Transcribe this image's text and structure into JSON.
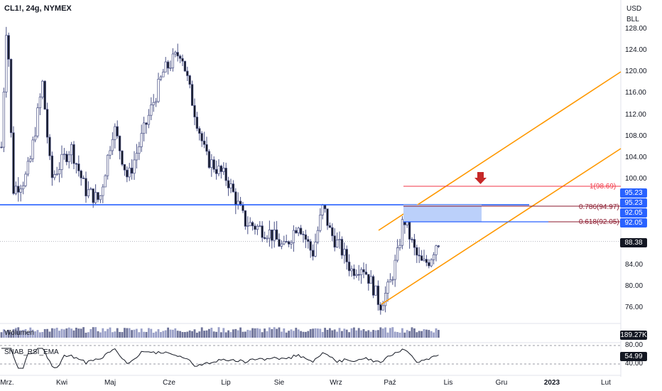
{
  "header": {
    "symbol": "CL1!, 24g, NYMEX"
  },
  "price_axis": {
    "currency": "USD",
    "unit": "BLL",
    "ticks": [
      "128.00",
      "124.00",
      "120.00",
      "116.00",
      "112.00",
      "108.00",
      "104.00",
      "100.00",
      "84.00",
      "80.00",
      "76.00"
    ]
  },
  "time_axis": {
    "ticks": [
      "Mrz.",
      "Kwi",
      "Maj",
      "Cze",
      "Lip",
      "Sie",
      "Wrz",
      "Paź",
      "Lis",
      "Gru",
      "2023",
      "Lut"
    ]
  },
  "panes": {
    "volume_label": "Wolumen",
    "rsi_label": "SNAB_RSI_EMA"
  },
  "tags": {
    "resistance_a": "95.23",
    "resistance_b": "95.23",
    "fib_a": "92.05",
    "fib_b": "92.05",
    "last_price": "88.38",
    "volume": "189.27K",
    "rsi": "54.99",
    "rsi_upper": "80.00",
    "rsi_lower": "40.00"
  },
  "fib_labels": {
    "level_1": "1(98.69)",
    "level_0786": "0.786(94.97)",
    "level_0618": "0.618(92.05)"
  },
  "colors": {
    "up": "#ffffff",
    "down": "#131722",
    "candle_outline": "#4a5186",
    "channel": "#ff9800",
    "support": "#2962ff",
    "fib_1": "#f23645",
    "fib_mid": "#8b1a2e",
    "zone": "#bbd0fa",
    "arrow": "#c62828",
    "tag_blue": "#2962ff",
    "tag_dark": "#131722"
  },
  "chart_data": {
    "type": "candlestick",
    "instrument": "CL1!",
    "interval": "24g",
    "ylim": [
      74,
      131
    ],
    "approx_close_path": [
      {
        "x": "Mrz.",
        "y": 112
      },
      {
        "x": "Kwi",
        "y": 102
      },
      {
        "x": "Maj",
        "y": 110
      },
      {
        "x": "Cze",
        "y": 120
      },
      {
        "x": "Lip",
        "y": 100
      },
      {
        "x": "Sie",
        "y": 90
      },
      {
        "x": "Wrz",
        "y": 86
      },
      {
        "x": "Paź",
        "y": 76.5
      },
      {
        "x": "Paź",
        "y": 93
      },
      {
        "x": "Lis",
        "y": 88.38
      }
    ],
    "last": 88.38,
    "horizontal_levels": [
      95.23,
      92.05,
      98.69,
      94.97
    ],
    "fibonacci": [
      {
        "label": "1(98.69)",
        "value": 98.69
      },
      {
        "label": "0.786(94.97)",
        "value": 94.97
      },
      {
        "label": "0.618(92.05)",
        "value": 92.05
      }
    ],
    "volume_last": "189.27K",
    "rsi_last": 54.99,
    "rsi_band": [
      40,
      80
    ]
  }
}
